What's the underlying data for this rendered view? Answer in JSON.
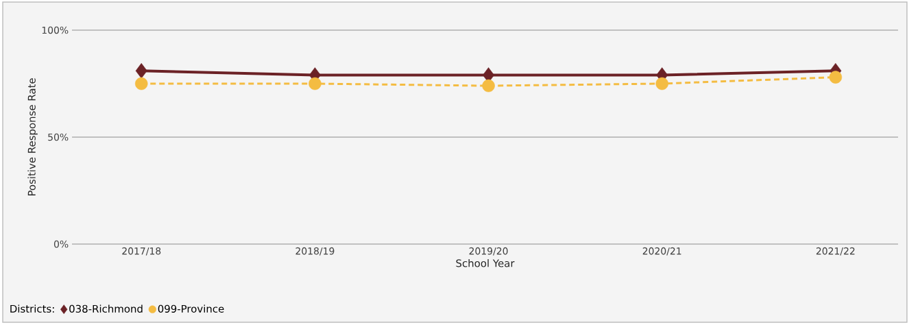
{
  "chart_data": {
    "type": "line",
    "xlabel": "School Year",
    "ylabel": "Positive Response Rate",
    "legend_title": "Districts:",
    "legend": "bottom left",
    "categories": [
      "2017/18",
      "2018/19",
      "2019/20",
      "2020/21",
      "2021/22"
    ],
    "ylim": [
      0,
      100
    ],
    "yticks": [
      {
        "value": 0,
        "label": "0%"
      },
      {
        "value": 50,
        "label": "50%"
      },
      {
        "value": 100,
        "label": "100%"
      }
    ],
    "grid": "y",
    "series": [
      {
        "name": "038-Richmond",
        "color": "#6b2226",
        "values": [
          81,
          79,
          79,
          79,
          81
        ],
        "marker": "diamond",
        "line_style": "solid"
      },
      {
        "name": "099-Province",
        "color": "#f4bc42",
        "values": [
          75,
          75,
          74,
          75,
          78
        ],
        "marker": "circle",
        "line_style": "dashed"
      }
    ]
  }
}
